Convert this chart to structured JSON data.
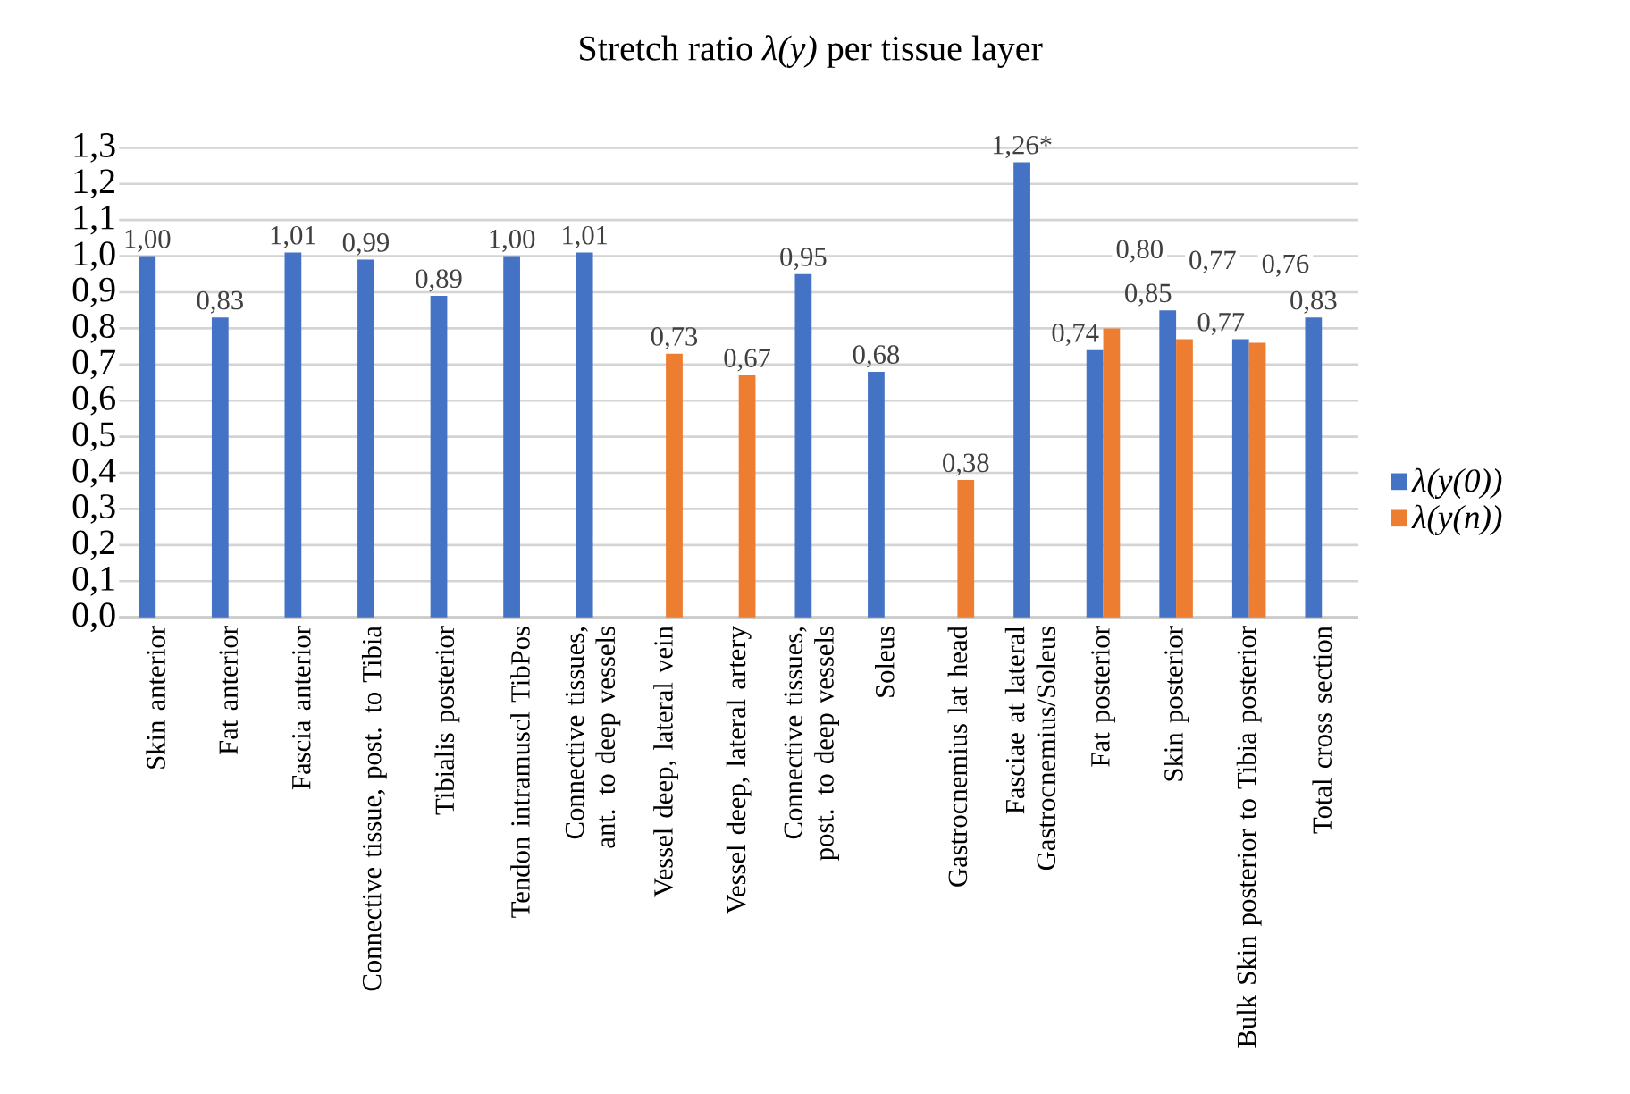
{
  "chart_data": {
    "type": "bar",
    "title": "Stretch ratio *λ(y)* per tissue layer",
    "categories": [
      "Skin anterior",
      "Fat anterior",
      "Fascia anterior",
      "Connective tissue, post. to Tibia",
      "Tibialis posterior",
      "Tendon intramuscl TibPos",
      "Connective tissues, ant. to deep vessels",
      "Vessel deep, lateral vein",
      "Vessel deep, lateral artery",
      "Connective tissues, post. to deep vessels",
      "Soleus",
      "Gastrocnemius lat head",
      "Fasciae at lateral Gastrocnemius/Soleus",
      "Fat posterior",
      "Skin posterior",
      "Bulk Skin posterior to Tibia posterior",
      "Total cross section"
    ],
    "series": [
      {
        "name": "λ(y(0))",
        "color": "#4472c4",
        "values": [
          1.0,
          0.83,
          1.01,
          0.99,
          0.89,
          1.0,
          1.01,
          null,
          null,
          0.95,
          0.68,
          null,
          1.26,
          0.74,
          0.85,
          0.77,
          0.83
        ],
        "value_labels": [
          "1,00",
          "0,83",
          "1,01",
          "0,99",
          "0,89",
          "1,00",
          "1,01",
          null,
          null,
          "0,95",
          "0,68",
          null,
          "1,26*",
          "0,74",
          "0,85",
          "0,77",
          "0,83"
        ]
      },
      {
        "name": "λ(y(n))",
        "color": "#ed7d31",
        "values": [
          null,
          null,
          null,
          null,
          null,
          null,
          null,
          0.73,
          0.67,
          null,
          null,
          0.38,
          null,
          0.8,
          0.77,
          0.76,
          null
        ],
        "value_labels": [
          null,
          null,
          null,
          null,
          null,
          null,
          null,
          "0,73",
          "0,67",
          null,
          null,
          "0,38",
          null,
          "0,80",
          "0,77",
          "0,76",
          null
        ]
      }
    ],
    "ylim": [
      0,
      1.3
    ],
    "yticks": [
      {
        "value": 0,
        "label": "0,0"
      },
      {
        "value": 0.1,
        "label": "0,1"
      },
      {
        "value": 0.2,
        "label": "0,2"
      },
      {
        "value": 0.3,
        "label": "0,3"
      },
      {
        "value": 0.4,
        "label": "0,4"
      },
      {
        "value": 0.5,
        "label": "0,5"
      },
      {
        "value": 0.6,
        "label": "0,6"
      },
      {
        "value": 0.7,
        "label": "0,7"
      },
      {
        "value": 0.8,
        "label": "0,8"
      },
      {
        "value": 0.9,
        "label": "0,9"
      },
      {
        "value": 1.0,
        "label": "1,0"
      },
      {
        "value": 1.1,
        "label": "1,1"
      },
      {
        "value": 1.2,
        "label": "1,2"
      },
      {
        "value": 1.3,
        "label": "1,3"
      }
    ],
    "grid": "y",
    "legend": "right"
  }
}
